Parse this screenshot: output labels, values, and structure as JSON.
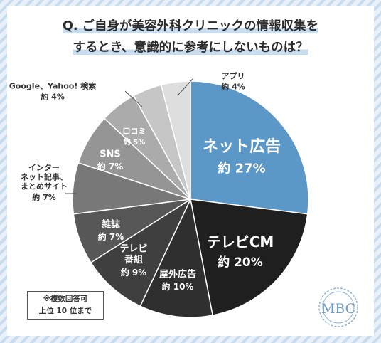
{
  "title_line1": "Q. ご自身が美容外科クリニックの情報収集を",
  "title_line2": "するとき、意識的に参考にしないものは？",
  "note_line1": "※複数回答可",
  "note_line2": "上位 10 位まで",
  "logo_text": "MBC",
  "chart_data": {
    "type": "pie",
    "title": "Q. ご自身が美容外科クリニックの情報収集をするとき、意識的に参考にしないものは？",
    "start": "12 o'clock, clockwise",
    "slices": [
      {
        "label": "ネット広告",
        "value": 27,
        "value_text": "約 27%",
        "color": "#5b97c7",
        "text_color": "#ffffff",
        "label_lines": [
          "ネット広告"
        ],
        "placement": "inside"
      },
      {
        "label": "テレビCM",
        "value": 20,
        "value_text": "約 20%",
        "color": "#1f1f1f",
        "text_color": "#ffffff",
        "label_lines": [
          "テレビCM"
        ],
        "placement": "inside"
      },
      {
        "label": "屋外広告",
        "value": 10,
        "value_text": "約 10%",
        "color": "#2f2f2f",
        "text_color": "#ffffff",
        "label_lines": [
          "屋外広告"
        ],
        "placement": "inside"
      },
      {
        "label": "テレビ番組",
        "value": 9,
        "value_text": "約 9%",
        "color": "#3f3f3f",
        "text_color": "#ffffff",
        "label_lines": [
          "テレビ",
          "番組"
        ],
        "placement": "inside"
      },
      {
        "label": "雑誌",
        "value": 7,
        "value_text": "約 7%",
        "color": "#575757",
        "text_color": "#ffffff",
        "label_lines": [
          "雑誌"
        ],
        "placement": "inside"
      },
      {
        "label": "インターネット記事、まとめサイト",
        "value": 7,
        "value_text": "約 7%",
        "color": "#787878",
        "text_color": "#333333",
        "label_lines": [
          "インター",
          "ネット記事、",
          "まとめサイト"
        ],
        "placement": "outside"
      },
      {
        "label": "SNS",
        "value": 7,
        "value_text": "約 7%",
        "color": "#959595",
        "text_color": "#ffffff",
        "label_lines": [
          "SNS"
        ],
        "placement": "inside"
      },
      {
        "label": "口コミ",
        "value": 5,
        "value_text": "約 5%",
        "color": "#ababab",
        "text_color": "#ffffff",
        "label_lines": [
          "口コミ"
        ],
        "placement": "inside"
      },
      {
        "label": "Google、Yahoo! 検索",
        "value": 4,
        "value_text": "約 4%",
        "color": "#c6c6c6",
        "text_color": "#333333",
        "label_lines": [
          "Google、Yahoo! 検索"
        ],
        "placement": "outside"
      },
      {
        "label": "アプリ",
        "value": 4,
        "value_text": "約 4%",
        "color": "#dedede",
        "text_color": "#333333",
        "label_lines": [
          "アプリ"
        ],
        "placement": "outside"
      }
    ]
  }
}
